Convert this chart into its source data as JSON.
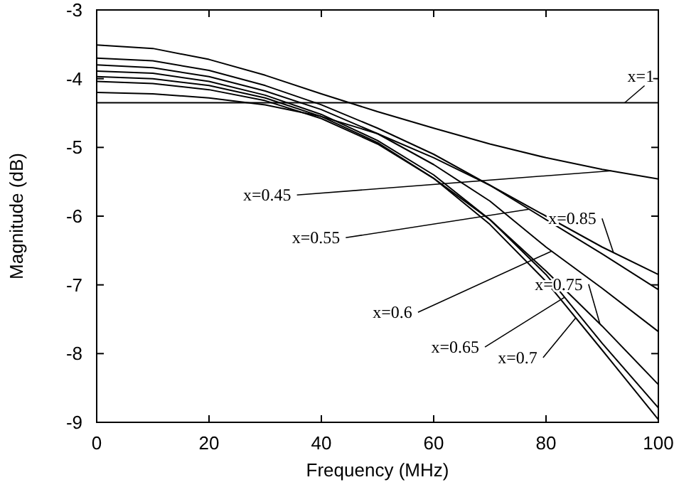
{
  "chart_data": {
    "type": "line",
    "xlabel": "Frequency (MHz)",
    "ylabel": "Magnitude (dB)",
    "x": [
      0,
      10,
      20,
      30,
      40,
      50,
      60,
      70,
      80,
      90,
      100
    ],
    "xlim": [
      0,
      100
    ],
    "xticks": [
      0,
      20,
      40,
      60,
      80,
      100
    ],
    "ylim": [
      -9,
      -3
    ],
    "yticks": [
      -9,
      -8,
      -7,
      -6,
      -5,
      -4,
      -3
    ],
    "grid": false,
    "marker": "none",
    "line_style": "solid",
    "series": [
      {
        "color": "#000000",
        "values": [
          -3.51,
          -3.56,
          -3.72,
          -3.95,
          -4.22,
          -4.48,
          -4.72,
          -4.95,
          -5.15,
          -5.32,
          -5.46
        ]
      },
      {
        "color": "#000000",
        "values": [
          -3.7,
          -3.74,
          -3.88,
          -4.1,
          -4.38,
          -4.72,
          -5.1,
          -5.55,
          -6.05,
          -6.55,
          -7.07
        ]
      },
      {
        "color": "#000000",
        "values": [
          -3.8,
          -3.84,
          -3.97,
          -4.18,
          -4.45,
          -4.8,
          -5.25,
          -5.78,
          -6.45,
          -7.05,
          -7.68
        ]
      },
      {
        "color": "#000000",
        "values": [
          -3.89,
          -3.92,
          -4.04,
          -4.24,
          -4.52,
          -4.9,
          -5.4,
          -6.05,
          -6.85,
          -7.85,
          -8.79
        ]
      },
      {
        "color": "#000000",
        "values": [
          -3.97,
          -4,
          -4.1,
          -4.28,
          -4.55,
          -4.93,
          -5.45,
          -6.12,
          -6.95,
          -7.95,
          -8.96
        ]
      },
      {
        "color": "#000000",
        "values": [
          -4.04,
          -4.07,
          -4.16,
          -4.32,
          -4.58,
          -4.95,
          -5.45,
          -6.05,
          -6.8,
          -7.6,
          -8.45
        ]
      },
      {
        "color": "#000000",
        "values": [
          -4.2,
          -4.22,
          -4.28,
          -4.38,
          -4.55,
          -4.8,
          -5.15,
          -5.55,
          -6,
          -6.45,
          -6.85
        ]
      },
      {
        "color": "#000000",
        "values": [
          -4.35,
          -4.35,
          -4.35,
          -4.35,
          -4.35,
          -4.35,
          -4.35,
          -4.35,
          -4.35,
          -4.35,
          -4.35
        ]
      }
    ],
    "annotations": [
      {
        "text": "x=1",
        "x": 94,
        "y": -4.35
      },
      {
        "text": "x=0.45",
        "x": 91.6,
        "y": -5.34
      },
      {
        "text": "x=0.55",
        "x": 77,
        "y": -5.9
      },
      {
        "text": "x=0.85",
        "x": 92,
        "y": -6.53
      },
      {
        "text": "x=0.6",
        "x": 81,
        "y": -6.51
      },
      {
        "text": "x=0.65",
        "x": 83.3,
        "y": -7.18
      },
      {
        "text": "x=0.7",
        "x": 85.3,
        "y": -7.48
      },
      {
        "text": "x=0.75",
        "x": 89.6,
        "y": -7.57
      }
    ]
  }
}
